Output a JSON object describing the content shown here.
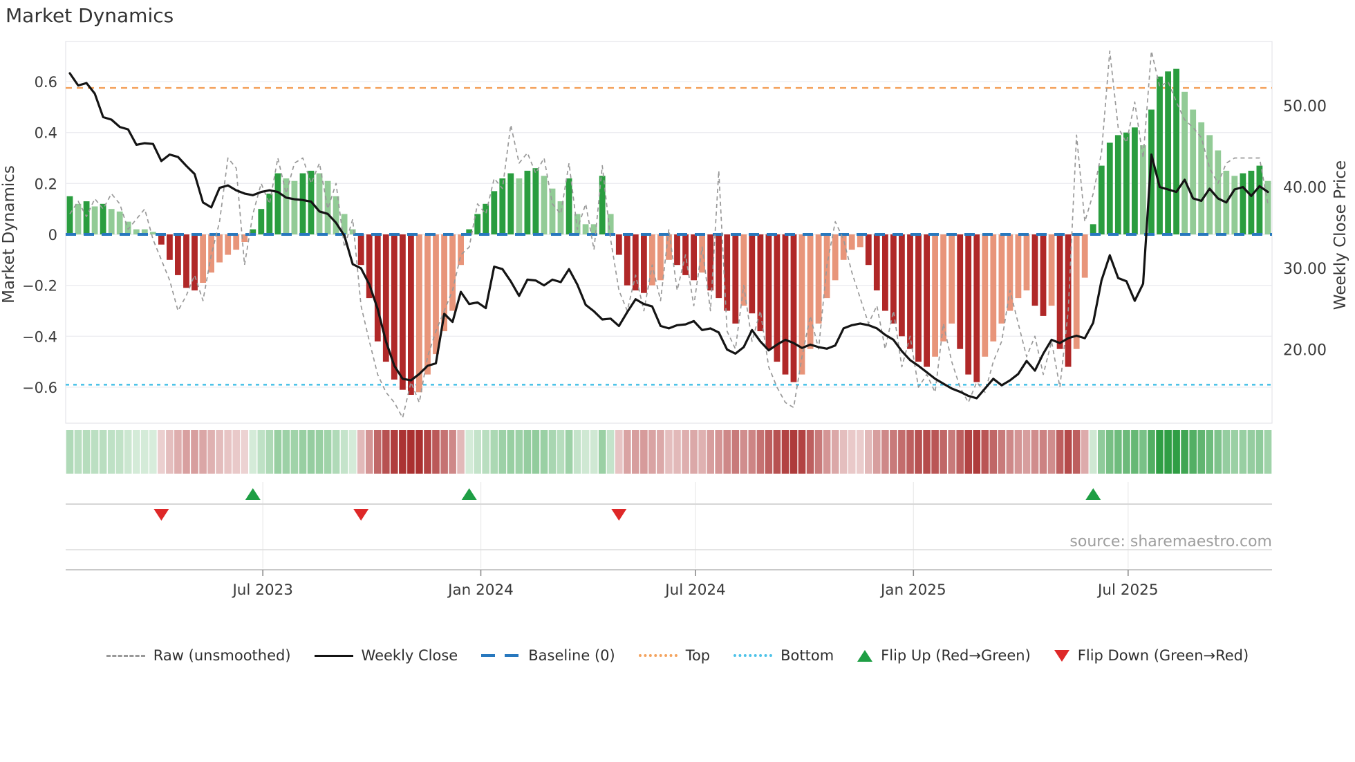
{
  "title": "Market Dynamics",
  "source": "source: sharemaestro.com",
  "left_axis": {
    "label": "Market Dynamics",
    "tick_labels": [
      "0.6",
      "0.4",
      "0.2",
      "0",
      "−0.2",
      "−0.4",
      "−0.6"
    ],
    "tick_values": [
      0.6,
      0.4,
      0.2,
      0,
      -0.2,
      -0.4,
      -0.6
    ]
  },
  "right_axis": {
    "label": "Weekly Close Price",
    "tick_labels": [
      "50.00",
      "40.00",
      "30.00",
      "20.00"
    ],
    "tick_values": [
      50,
      40,
      30,
      20
    ]
  },
  "x_axis": {
    "tick_labels": [
      "Jul 2023",
      "Jan 2024",
      "Jul 2024",
      "Jan 2025",
      "Jul 2025"
    ],
    "tick_week_positions": [
      23.2,
      49.4,
      75.2,
      101.4,
      127.2
    ]
  },
  "colors": {
    "bar_pos_strong": "#2a9d3f",
    "bar_pos_soft": "#92cb96",
    "bar_neg_strong": "#b02828",
    "bar_neg_soft": "#e8957a",
    "baseline": "#2878be",
    "top_line": "#f4a460",
    "bottom_line": "#4fc3e8",
    "raw_line": "#999999",
    "close_line": "#141414",
    "flip_up": "#1e9e44",
    "flip_down": "#de2828",
    "grid": "#ededf1",
    "spine": "#e4e4e8",
    "axis_line": "#c9c9c9",
    "lane_line": "#d6d6d6",
    "text": "#3a3a3a",
    "muted_text": "#9e9e9e"
  },
  "legend": {
    "items": [
      {
        "label": "Raw (unsmoothed)",
        "glyph": "dashed-line",
        "color": "#999999"
      },
      {
        "label": "Weekly Close",
        "glyph": "solid-line",
        "color": "#141414"
      },
      {
        "label": "Baseline (0)",
        "glyph": "dash-pair",
        "color": "#2878be"
      },
      {
        "label": "Top",
        "glyph": "dotted-line",
        "color": "#f4a460"
      },
      {
        "label": "Bottom",
        "glyph": "dotted-line",
        "color": "#4fc3e8"
      },
      {
        "label": "Flip Up (Red→Green)",
        "glyph": "triangle-up",
        "color": "#1e9e44"
      },
      {
        "label": "Flip Down (Green→Red)",
        "glyph": "triangle-down",
        "color": "#de2828"
      }
    ]
  },
  "chart_data": {
    "type": "combo",
    "x": {
      "start_date": "2023-01-16",
      "interval_days": 7,
      "n_weeks": 145
    },
    "left_ylim": [
      -0.75,
      0.76
    ],
    "right_ylim": [
      12,
      56
    ],
    "baseline": 0,
    "top_threshold": 0.575,
    "bottom_threshold": -0.59,
    "flip_up_weeks": [
      22,
      48,
      123
    ],
    "flip_down_weeks": [
      11,
      35,
      66
    ],
    "series": [
      {
        "name": "Oscillator",
        "type": "bar",
        "axis": "left",
        "shade_rule": "strong color when |value| rising vs previous week, soft when falling",
        "values": [
          0.15,
          0.12,
          0.13,
          0.11,
          0.12,
          0.1,
          0.09,
          0.05,
          0.02,
          0.02,
          0.01,
          -0.04,
          -0.1,
          -0.16,
          -0.21,
          -0.22,
          -0.19,
          -0.15,
          -0.11,
          -0.08,
          -0.06,
          -0.03,
          0.02,
          0.1,
          0.16,
          0.24,
          0.22,
          0.21,
          0.24,
          0.25,
          0.24,
          0.21,
          0.15,
          0.08,
          0.02,
          -0.12,
          -0.25,
          -0.42,
          -0.5,
          -0.57,
          -0.61,
          -0.63,
          -0.62,
          -0.55,
          -0.47,
          -0.38,
          -0.3,
          -0.12,
          0.02,
          0.08,
          0.12,
          0.17,
          0.22,
          0.24,
          0.22,
          0.25,
          0.26,
          0.23,
          0.18,
          0.13,
          0.22,
          0.08,
          0.04,
          0.04,
          0.23,
          0.08,
          -0.08,
          -0.2,
          -0.22,
          -0.23,
          -0.2,
          -0.18,
          -0.1,
          -0.12,
          -0.16,
          -0.18,
          -0.15,
          -0.22,
          -0.25,
          -0.3,
          -0.35,
          -0.28,
          -0.31,
          -0.38,
          -0.45,
          -0.5,
          -0.55,
          -0.58,
          -0.55,
          -0.45,
          -0.35,
          -0.25,
          -0.18,
          -0.1,
          -0.06,
          -0.05,
          -0.12,
          -0.22,
          -0.3,
          -0.35,
          -0.4,
          -0.45,
          -0.5,
          -0.52,
          -0.48,
          -0.42,
          -0.35,
          -0.45,
          -0.55,
          -0.58,
          -0.48,
          -0.42,
          -0.35,
          -0.3,
          -0.25,
          -0.22,
          -0.28,
          -0.32,
          -0.28,
          -0.45,
          -0.52,
          -0.45,
          -0.17,
          0.04,
          0.27,
          0.36,
          0.39,
          0.4,
          0.42,
          0.35,
          0.49,
          0.62,
          0.64,
          0.65,
          0.56,
          0.49,
          0.44,
          0.39,
          0.33,
          0.25,
          0.23,
          0.24,
          0.25,
          0.27,
          0.21
        ]
      },
      {
        "name": "Raw (unsmoothed)",
        "type": "line",
        "axis": "left",
        "values": [
          0.08,
          0.13,
          0.07,
          0.14,
          0.1,
          0.16,
          0.12,
          0.02,
          0.06,
          0.1,
          -0.02,
          -0.1,
          -0.18,
          -0.3,
          -0.24,
          -0.16,
          -0.26,
          -0.08,
          0.05,
          0.3,
          0.26,
          -0.12,
          0.08,
          0.2,
          0.12,
          0.3,
          0.16,
          0.28,
          0.3,
          0.2,
          0.28,
          0.1,
          0.2,
          -0.05,
          0.06,
          -0.28,
          -0.42,
          -0.55,
          -0.62,
          -0.66,
          -0.72,
          -0.58,
          -0.66,
          -0.48,
          -0.38,
          -0.3,
          -0.22,
          -0.08,
          -0.05,
          0.12,
          0.08,
          0.22,
          0.18,
          0.43,
          0.28,
          0.32,
          0.24,
          0.3,
          0.12,
          0.08,
          0.28,
          0.02,
          0.12,
          -0.06,
          0.27,
          -0.02,
          -0.22,
          -0.3,
          -0.16,
          -0.3,
          -0.12,
          -0.26,
          0.02,
          -0.22,
          -0.08,
          -0.28,
          -0.05,
          -0.3,
          0.25,
          -0.38,
          -0.45,
          -0.2,
          -0.42,
          -0.3,
          -0.52,
          -0.6,
          -0.66,
          -0.68,
          -0.48,
          -0.32,
          -0.45,
          -0.12,
          0.05,
          -0.02,
          -0.15,
          -0.25,
          -0.35,
          -0.28,
          -0.45,
          -0.3,
          -0.52,
          -0.4,
          -0.6,
          -0.55,
          -0.62,
          -0.35,
          -0.5,
          -0.6,
          -0.66,
          -0.58,
          -0.62,
          -0.5,
          -0.42,
          -0.22,
          -0.35,
          -0.48,
          -0.4,
          -0.55,
          -0.42,
          -0.6,
          -0.3,
          0.39,
          0.05,
          0.16,
          0.32,
          0.72,
          0.42,
          0.36,
          0.52,
          0.3,
          0.72,
          0.58,
          0.6,
          0.52,
          0.45,
          0.42,
          0.38,
          0.26,
          0.2,
          0.28,
          0.3,
          0.3,
          0.3,
          0.3,
          0.12
        ]
      },
      {
        "name": "Weekly Close",
        "type": "line",
        "axis": "right",
        "values": [
          54.0,
          52.5,
          52.8,
          51.5,
          48.6,
          48.3,
          47.4,
          47.1,
          45.2,
          45.4,
          45.3,
          43.2,
          44.0,
          43.7,
          42.6,
          41.6,
          38.1,
          37.5,
          39.9,
          40.2,
          39.6,
          39.2,
          39.0,
          39.4,
          39.6,
          39.4,
          38.7,
          38.5,
          38.4,
          38.2,
          37.0,
          36.7,
          35.6,
          34.0,
          30.5,
          30.0,
          28.0,
          25.0,
          21.0,
          18.0,
          16.4,
          16.2,
          17.0,
          18.0,
          18.3,
          24.4,
          23.4,
          27.1,
          25.6,
          25.8,
          25.1,
          30.2,
          29.9,
          28.4,
          26.6,
          28.6,
          28.5,
          27.9,
          28.6,
          28.3,
          29.9,
          28.0,
          25.5,
          24.7,
          23.7,
          23.8,
          22.9,
          24.6,
          26.2,
          25.6,
          25.3,
          22.9,
          22.6,
          23.0,
          23.1,
          23.5,
          22.4,
          22.6,
          22.1,
          20.0,
          19.5,
          20.3,
          22.4,
          21.0,
          19.9,
          20.6,
          21.2,
          20.8,
          20.2,
          20.6,
          20.3,
          20.1,
          20.5,
          22.6,
          23.0,
          23.2,
          23.0,
          22.6,
          21.8,
          21.2,
          19.8,
          18.7,
          18.0,
          17.2,
          16.4,
          15.8,
          15.2,
          14.8,
          14.3,
          14.0,
          15.2,
          16.4,
          15.6,
          16.2,
          17.0,
          18.6,
          17.4,
          19.5,
          21.2,
          20.8,
          21.4,
          21.7,
          21.4,
          23.3,
          28.5,
          31.6,
          28.8,
          28.4,
          26.0,
          28.1,
          44.0,
          40.0,
          39.7,
          39.4,
          40.9,
          38.6,
          38.3,
          39.8,
          38.6,
          38.1,
          39.7,
          40.0,
          38.9,
          40.1,
          39.4
        ]
      }
    ],
    "heatmap": {
      "description": "weekly strip colored by oscillator sign and magnitude",
      "derived_from": "Oscillator"
    }
  }
}
